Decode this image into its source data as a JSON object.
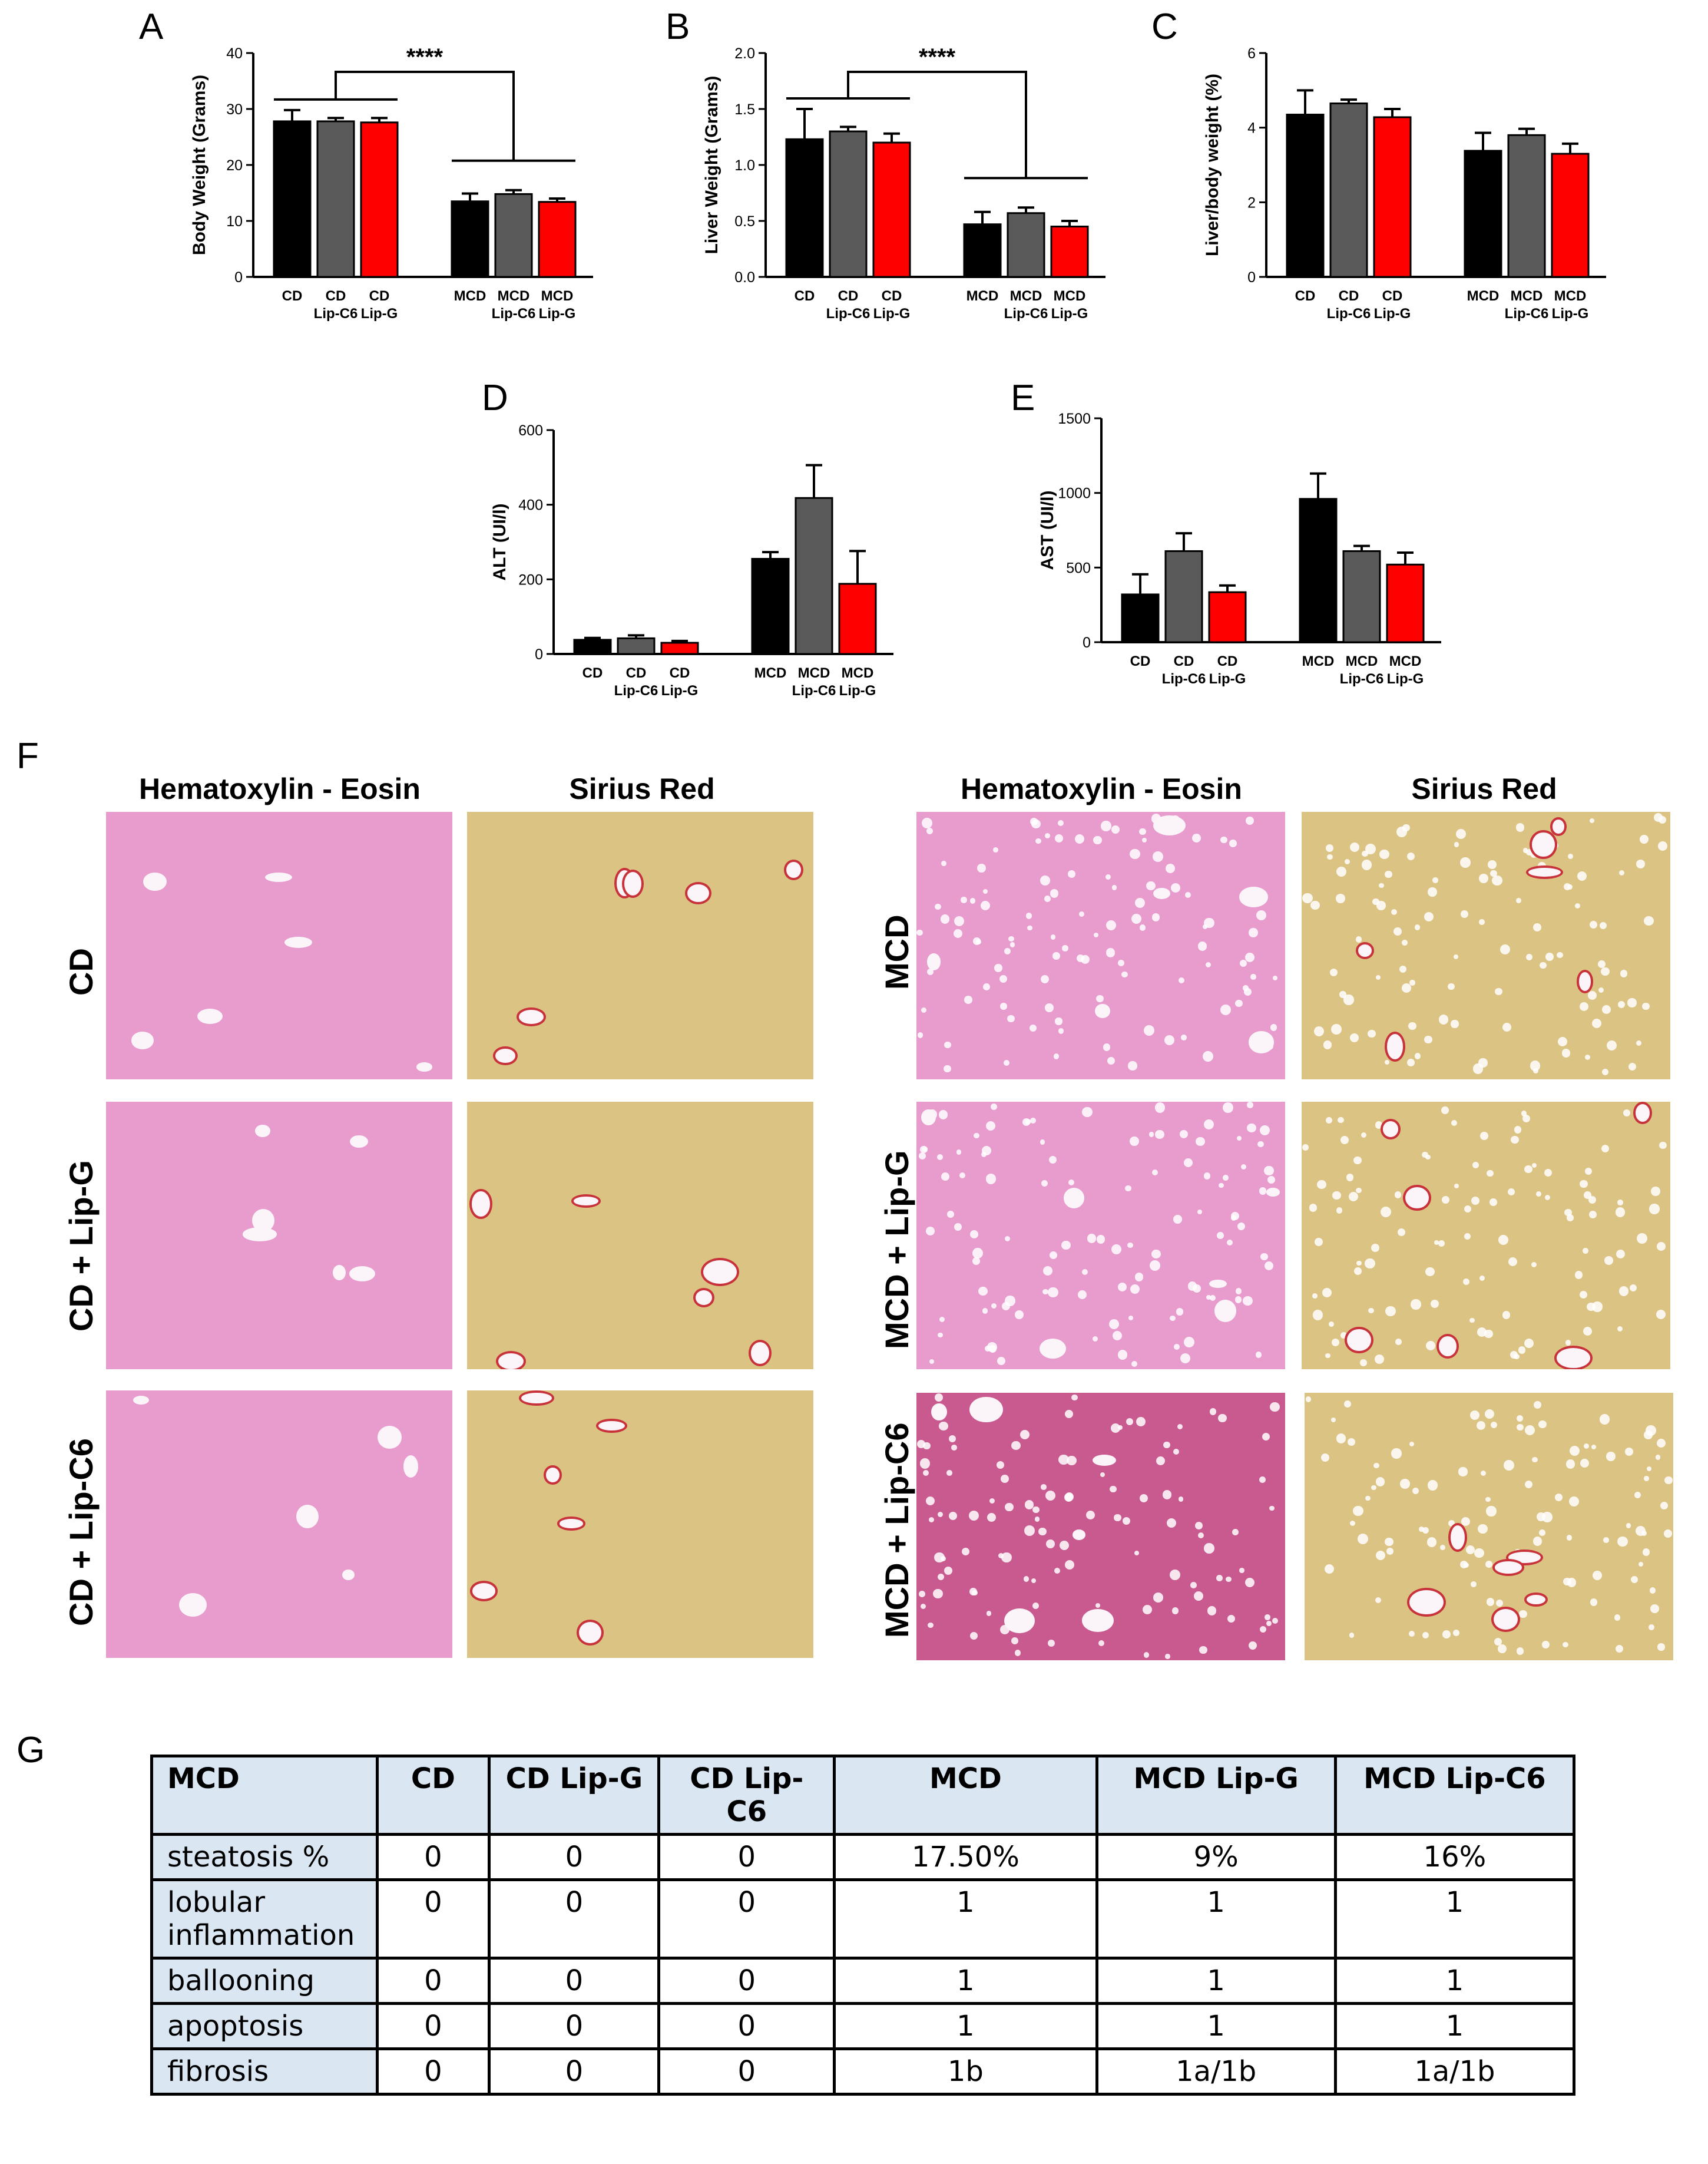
{
  "panel_labels": {
    "A": "A",
    "B": "B",
    "C": "C",
    "D": "D",
    "E": "E",
    "F": "F",
    "G": "G"
  },
  "colors": {
    "CD": "#000000",
    "Lip-C6": "#5a5a5a",
    "Lip-G": "#ff0000"
  },
  "chart_data": [
    {
      "panel": "A",
      "type": "bar",
      "ylabel": "Body Weight (Grams)",
      "ylim": [
        0,
        40
      ],
      "yticks": [
        0,
        10,
        20,
        30,
        40
      ],
      "categories": [
        [
          "CD",
          ""
        ],
        [
          "CD",
          "Lip-C6"
        ],
        [
          "CD",
          "Lip-G"
        ],
        [
          "MCD",
          ""
        ],
        [
          "MCD",
          "Lip-C6"
        ],
        [
          "MCD",
          "Lip-G"
        ]
      ],
      "values": [
        27.8,
        27.8,
        27.6,
        13.5,
        14.8,
        13.4
      ],
      "errors": [
        2.0,
        0.6,
        0.8,
        1.4,
        0.7,
        0.6
      ],
      "significance": "****"
    },
    {
      "panel": "B",
      "type": "bar",
      "ylabel": "Liver Weight (Grams)",
      "ylim": [
        0,
        2.0
      ],
      "yticks": [
        "0.0",
        "0.5",
        "1.0",
        "1.5",
        "2.0"
      ],
      "categories": [
        [
          "CD",
          ""
        ],
        [
          "CD",
          "Lip-C6"
        ],
        [
          "CD",
          "Lip-G"
        ],
        [
          "MCD",
          ""
        ],
        [
          "MCD",
          "Lip-C6"
        ],
        [
          "MCD",
          "Lip-G"
        ]
      ],
      "values": [
        1.23,
        1.3,
        1.2,
        0.47,
        0.57,
        0.45
      ],
      "errors": [
        0.27,
        0.04,
        0.08,
        0.11,
        0.05,
        0.05
      ],
      "significance": "****"
    },
    {
      "panel": "C",
      "type": "bar",
      "ylabel": "Liver/body weight (%)",
      "ylim": [
        0,
        6
      ],
      "yticks": [
        0,
        2,
        4,
        6
      ],
      "categories": [
        [
          "CD",
          ""
        ],
        [
          "CD",
          "Lip-C6"
        ],
        [
          "CD",
          "Lip-G"
        ],
        [
          "MCD",
          ""
        ],
        [
          "MCD",
          "Lip-C6"
        ],
        [
          "MCD",
          "Lip-G"
        ]
      ],
      "values": [
        4.35,
        4.65,
        4.28,
        3.38,
        3.8,
        3.3
      ],
      "errors": [
        0.65,
        0.1,
        0.22,
        0.48,
        0.17,
        0.27
      ],
      "significance": ""
    },
    {
      "panel": "D",
      "type": "bar",
      "ylabel": "ALT (UI/l)",
      "ylim": [
        0,
        600
      ],
      "yticks": [
        0,
        200,
        400,
        600
      ],
      "categories": [
        [
          "CD",
          ""
        ],
        [
          "CD",
          "Lip-C6"
        ],
        [
          "CD",
          "Lip-G"
        ],
        [
          "MCD",
          ""
        ],
        [
          "MCD",
          "Lip-C6"
        ],
        [
          "MCD",
          "Lip-G"
        ]
      ],
      "values": [
        38,
        42,
        30,
        255,
        418,
        188
      ],
      "errors": [
        5,
        8,
        5,
        18,
        88,
        88
      ],
      "significance": ""
    },
    {
      "panel": "E",
      "type": "bar",
      "ylabel": "AST (UI/l)",
      "ylim": [
        0,
        1500
      ],
      "yticks": [
        0,
        500,
        1000,
        1500
      ],
      "categories": [
        [
          "CD",
          ""
        ],
        [
          "CD",
          "Lip-C6"
        ],
        [
          "CD",
          "Lip-G"
        ],
        [
          "MCD",
          ""
        ],
        [
          "MCD",
          "Lip-C6"
        ],
        [
          "MCD",
          "Lip-G"
        ]
      ],
      "values": [
        320,
        610,
        335,
        960,
        610,
        520
      ],
      "errors": [
        135,
        120,
        45,
        170,
        35,
        80
      ],
      "significance": ""
    }
  ],
  "histology": {
    "col_headers": [
      "Hematoxylin - Eosin",
      "Sirius Red",
      "Hematoxylin - Eosin",
      "Sirius Red"
    ],
    "rows_left": [
      "CD",
      "CD + Lip-G",
      "CD + Lip-C6"
    ],
    "rows_right": [
      "MCD",
      "MCD + Lip-G",
      "MCD + Lip-C6"
    ],
    "he_color": "#e79ccd",
    "sr_color": "#dbc384"
  },
  "table": {
    "header": [
      "MCD",
      "CD",
      "CD Lip-G",
      "CD Lip-C6",
      "MCD",
      "MCD Lip-G",
      "MCD Lip-C6"
    ],
    "rows": [
      [
        "steatosis %",
        "0",
        "0",
        "0",
        "17.50%",
        "9%",
        "16%"
      ],
      [
        "lobular inflammation",
        "0",
        "0",
        "0",
        "1",
        "1",
        "1"
      ],
      [
        "ballooning",
        "0",
        "0",
        "0",
        "1",
        "1",
        "1"
      ],
      [
        "apoptosis",
        "0",
        "0",
        "0",
        "1",
        "1",
        "1"
      ],
      [
        "fibrosis",
        "0",
        "0",
        "0",
        "1b",
        "1a/1b",
        "1a/1b"
      ]
    ]
  }
}
